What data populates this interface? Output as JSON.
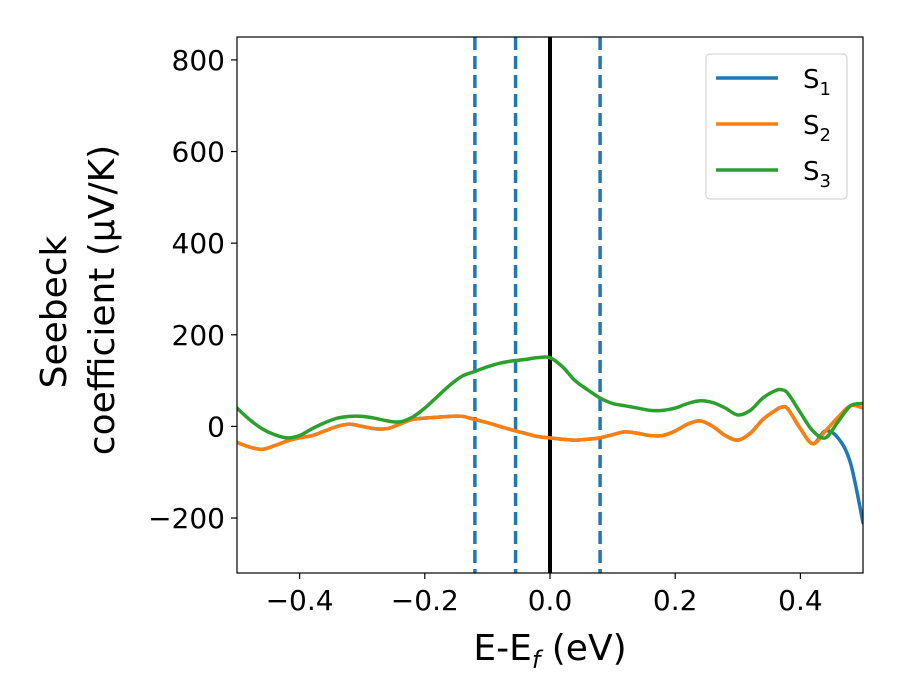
{
  "chart_data": {
    "type": "line",
    "xlabel": {
      "main": "E-E",
      "sub": "f",
      "rest": " (eV)"
    },
    "ylabel": {
      "line1": "Seebeck",
      "line2": "coefficient  (μV/K)"
    },
    "xlim": [
      -0.5,
      0.5
    ],
    "ylim": [
      -320,
      850
    ],
    "xticks": [
      {
        "value": -0.4,
        "label": "−0.4"
      },
      {
        "value": -0.2,
        "label": "−0.2"
      },
      {
        "value": 0.0,
        "label": "0.0"
      },
      {
        "value": 0.2,
        "label": "0.2"
      },
      {
        "value": 0.4,
        "label": "0.4"
      }
    ],
    "yticks": [
      {
        "value": -200,
        "label": "−200"
      },
      {
        "value": 0,
        "label": "0"
      },
      {
        "value": 200,
        "label": "200"
      },
      {
        "value": 400,
        "label": "400"
      },
      {
        "value": 600,
        "label": "600"
      },
      {
        "value": 800,
        "label": "800"
      }
    ],
    "legend_position": "top-right",
    "vertical_lines": [
      {
        "x": -0.12,
        "style": "dashed",
        "color": "#1f77b4"
      },
      {
        "x": -0.055,
        "style": "dashed",
        "color": "#1f77b4"
      },
      {
        "x": 0.0,
        "style": "solid",
        "color": "#000000"
      },
      {
        "x": 0.08,
        "style": "dashed",
        "color": "#1f77b4"
      }
    ],
    "series": [
      {
        "name": "S",
        "sub": "1",
        "color": "#1f77b4",
        "x": [
          -0.5,
          -0.48,
          -0.46,
          -0.44,
          -0.42,
          -0.4,
          -0.38,
          -0.36,
          -0.34,
          -0.32,
          -0.3,
          -0.28,
          -0.26,
          -0.24,
          -0.22,
          -0.2,
          -0.18,
          -0.16,
          -0.14,
          -0.12,
          -0.1,
          -0.08,
          -0.06,
          -0.04,
          -0.02,
          0.0,
          0.02,
          0.04,
          0.06,
          0.08,
          0.1,
          0.12,
          0.14,
          0.16,
          0.18,
          0.2,
          0.22,
          0.24,
          0.26,
          0.28,
          0.3,
          0.32,
          0.34,
          0.36,
          0.37,
          0.38,
          0.4,
          0.42,
          0.44,
          0.46,
          0.48,
          0.5
        ],
        "y": [
          -35,
          -45,
          -50,
          -42,
          -32,
          -25,
          -20,
          -10,
          0,
          5,
          0,
          -5,
          -5,
          5,
          15,
          18,
          20,
          22,
          22,
          15,
          8,
          0,
          -8,
          -15,
          -22,
          -25,
          -28,
          -30,
          -28,
          -25,
          -18,
          -12,
          -15,
          -20,
          -20,
          -10,
          5,
          12,
          0,
          -20,
          -30,
          -15,
          15,
          35,
          42,
          38,
          -5,
          -38,
          -10,
          -25,
          -80,
          -210
        ]
      },
      {
        "name": "S",
        "sub": "2",
        "color": "#ff7f0e",
        "x": [
          -0.5,
          -0.48,
          -0.46,
          -0.44,
          -0.42,
          -0.4,
          -0.38,
          -0.36,
          -0.34,
          -0.32,
          -0.3,
          -0.28,
          -0.26,
          -0.24,
          -0.22,
          -0.2,
          -0.18,
          -0.16,
          -0.14,
          -0.12,
          -0.1,
          -0.08,
          -0.06,
          -0.04,
          -0.02,
          0.0,
          0.02,
          0.04,
          0.06,
          0.08,
          0.1,
          0.12,
          0.14,
          0.16,
          0.18,
          0.2,
          0.22,
          0.24,
          0.26,
          0.28,
          0.3,
          0.32,
          0.34,
          0.36,
          0.37,
          0.38,
          0.4,
          0.42,
          0.44,
          0.46,
          0.48,
          0.5
        ],
        "y": [
          -35,
          -45,
          -50,
          -42,
          -32,
          -25,
          -20,
          -10,
          0,
          5,
          0,
          -5,
          -5,
          5,
          15,
          18,
          20,
          22,
          22,
          15,
          8,
          0,
          -8,
          -15,
          -22,
          -25,
          -28,
          -30,
          -28,
          -25,
          -18,
          -12,
          -15,
          -20,
          -20,
          -10,
          5,
          12,
          0,
          -20,
          -30,
          -15,
          15,
          35,
          42,
          38,
          -5,
          -38,
          -10,
          20,
          45,
          40
        ]
      },
      {
        "name": "S",
        "sub": "3",
        "color": "#2ca02c",
        "x": [
          -0.5,
          -0.48,
          -0.46,
          -0.44,
          -0.42,
          -0.4,
          -0.38,
          -0.36,
          -0.34,
          -0.32,
          -0.3,
          -0.28,
          -0.26,
          -0.24,
          -0.22,
          -0.2,
          -0.18,
          -0.16,
          -0.14,
          -0.12,
          -0.1,
          -0.08,
          -0.06,
          -0.04,
          -0.02,
          0.0,
          0.02,
          0.04,
          0.06,
          0.08,
          0.1,
          0.12,
          0.14,
          0.16,
          0.18,
          0.2,
          0.22,
          0.24,
          0.26,
          0.28,
          0.3,
          0.32,
          0.34,
          0.36,
          0.37,
          0.38,
          0.4,
          0.42,
          0.44,
          0.46,
          0.48,
          0.5
        ],
        "y": [
          40,
          15,
          -5,
          -18,
          -25,
          -20,
          -5,
          8,
          18,
          22,
          22,
          18,
          12,
          10,
          20,
          40,
          65,
          90,
          110,
          120,
          130,
          138,
          143,
          146,
          150,
          150,
          130,
          100,
          80,
          62,
          50,
          45,
          40,
          35,
          35,
          40,
          50,
          56,
          52,
          40,
          25,
          35,
          62,
          78,
          80,
          72,
          30,
          -10,
          -25,
          10,
          45,
          50
        ]
      }
    ]
  }
}
